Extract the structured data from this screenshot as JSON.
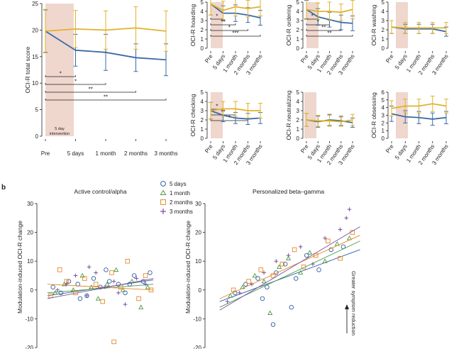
{
  "panel_b_label": "b",
  "annotation": "Greater symptom reduction",
  "intervention_label": [
    "5 day",
    "intervention"
  ],
  "legend": [
    {
      "name": "5 days",
      "symbol": "circle",
      "color": "#2f5fa8"
    },
    {
      "name": "1 month",
      "symbol": "triangle",
      "color": "#4a9a45"
    },
    {
      "name": "2 months",
      "symbol": "square",
      "color": "#e3892a"
    },
    {
      "name": "3 months",
      "symbol": "plus",
      "color": "#7b4fa0"
    }
  ],
  "colors": {
    "active": "#3a6aa8",
    "control": "#e0b22a",
    "shade": "#e9c9bd"
  },
  "chart_data": [
    {
      "id": "total",
      "type": "line",
      "ylabel": "OCI-R total score",
      "x": [
        "Pre",
        "5 days",
        "1 month",
        "2 months",
        "3 months"
      ],
      "ylim": [
        0,
        25
      ],
      "series": [
        {
          "color": "#3a6aa8",
          "values": [
            19.8,
            16.2,
            15.8,
            14.8,
            14.4
          ],
          "err": [
            4,
            3,
            3.4,
            2.6,
            3
          ]
        },
        {
          "color": "#e0b22a",
          "values": [
            19.8,
            20.2,
            20.0,
            20.4,
            19.8
          ],
          "err": [
            4.1,
            3.5,
            3.6,
            4,
            3.8
          ]
        }
      ],
      "significance": [
        "*",
        "*",
        "**",
        "**"
      ]
    },
    {
      "id": "hoarding",
      "type": "line",
      "ylabel": "OCI-R hoarding",
      "x": [
        "Pre",
        "5 days",
        "1 month",
        "2 months",
        "3 months"
      ],
      "ylim": [
        0,
        5
      ],
      "yticks": [
        0,
        1,
        2,
        3,
        4,
        5
      ],
      "series": [
        {
          "color": "#3a6aa8",
          "values": [
            4.8,
            3.8,
            3.8,
            3.6,
            3.3
          ],
          "err": [
            1.2,
            0.8,
            0.9,
            0.8,
            0.8
          ]
        },
        {
          "color": "#e0b22a",
          "values": [
            4.8,
            4.1,
            4.5,
            4.3,
            4.5
          ],
          "err": [
            1.2,
            1,
            1,
            0.9,
            1
          ]
        }
      ],
      "significance": [
        "*",
        "**",
        "*",
        "***"
      ]
    },
    {
      "id": "ordering",
      "type": "line",
      "ylabel": "OCI-R ordering",
      "x": [
        "Pre",
        "5 days",
        "1 month",
        "2 months",
        "3 months"
      ],
      "ylim": [
        0,
        5
      ],
      "yticks": [
        0,
        1,
        2,
        3,
        4,
        5
      ],
      "series": [
        {
          "color": "#3a6aa8",
          "values": [
            4.2,
            3.4,
            3.1,
            2.8,
            2.7
          ],
          "err": [
            1,
            0.9,
            0.8,
            0.8,
            0.8
          ]
        },
        {
          "color": "#e0b22a",
          "values": [
            4.2,
            4.0,
            4.0,
            3.9,
            4.2
          ],
          "err": [
            1.1,
            0.9,
            1,
            0.9,
            1
          ]
        }
      ],
      "significance": [
        "*",
        "*",
        "**",
        "**"
      ]
    },
    {
      "id": "washing",
      "type": "line",
      "ylabel": "OCI-R washing",
      "x": [
        "Pre",
        "5 days",
        "1 month",
        "2 months",
        "3 months"
      ],
      "ylim": [
        0,
        5
      ],
      "yticks": [
        0,
        1,
        2,
        3,
        4,
        5
      ],
      "series": [
        {
          "color": "#3a6aa8",
          "values": [
            2.3,
            2.1,
            2.1,
            2.1,
            1.8
          ],
          "err": [
            0.7,
            0.5,
            0.5,
            0.5,
            0.5
          ]
        },
        {
          "color": "#e0b22a",
          "values": [
            2.3,
            2.2,
            2.2,
            2.2,
            2.2
          ],
          "err": [
            0.7,
            0.6,
            0.6,
            0.6,
            0.6
          ]
        }
      ],
      "significance": []
    },
    {
      "id": "checking",
      "type": "line",
      "ylabel": "OCI-R checking",
      "x": [
        "Pre",
        "5 days",
        "1 month",
        "2 months",
        "3 months"
      ],
      "ylim": [
        0,
        5
      ],
      "yticks": [
        0,
        1,
        2,
        3,
        4,
        5
      ],
      "series": [
        {
          "color": "#3a6aa8",
          "values": [
            3.0,
            2.5,
            2.2,
            2.1,
            2.2
          ],
          "err": [
            0.9,
            0.7,
            0.6,
            0.6,
            0.6
          ]
        },
        {
          "color": "#e0b22a",
          "values": [
            3.0,
            3.2,
            3.2,
            3.0,
            3.0
          ],
          "err": [
            0.9,
            0.8,
            0.8,
            0.8,
            0.8
          ]
        }
      ],
      "significance": [
        "*",
        "**",
        "*"
      ]
    },
    {
      "id": "neutralizing",
      "type": "line",
      "ylabel": "OCI-R neutralizing",
      "x": [
        "Pre",
        "5 days",
        "1 month",
        "2 months",
        "3 months"
      ],
      "ylim": [
        0,
        5
      ],
      "yticks": [
        0,
        1,
        2,
        3,
        4,
        5
      ],
      "series": [
        {
          "color": "#3a6aa8",
          "values": [
            2.0,
            1.8,
            2.0,
            1.9,
            1.7
          ],
          "err": [
            0.7,
            0.6,
            0.6,
            0.5,
            0.5
          ]
        },
        {
          "color": "#e0b22a",
          "values": [
            2.0,
            1.9,
            1.9,
            1.8,
            2.0
          ],
          "err": [
            0.7,
            0.6,
            0.6,
            0.5,
            0.6
          ]
        }
      ],
      "significance": []
    },
    {
      "id": "obsessing",
      "type": "line",
      "ylabel": "OCI-R obsessing",
      "x": [
        "Pre",
        "5 days",
        "1 month",
        "2 months",
        "3 months"
      ],
      "ylim": [
        0,
        6
      ],
      "yticks": [
        0,
        1,
        2,
        3,
        4,
        5,
        6
      ],
      "series": [
        {
          "color": "#3a6aa8",
          "values": [
            3.2,
            2.8,
            2.7,
            2.5,
            2.7
          ],
          "err": [
            1,
            0.8,
            0.8,
            0.8,
            0.8
          ]
        },
        {
          "color": "#e0b22a",
          "values": [
            3.9,
            4.2,
            4.2,
            4.5,
            4.2
          ],
          "err": [
            1,
            0.9,
            0.9,
            1,
            0.9
          ]
        }
      ],
      "significance": []
    },
    {
      "id": "scatter_control",
      "type": "scatter",
      "title": "Active control/alpha",
      "ylabel": "Modulation-induced OCI-R change",
      "xlim": [
        0,
        1
      ],
      "ylim": [
        -20,
        30
      ],
      "yticks": [
        -20,
        -10,
        0,
        10,
        20,
        30
      ],
      "series": [
        {
          "symbol": "circle",
          "color": "#2f5fa8",
          "line": [
            [
              0.03,
              -2
            ],
            [
              0.97,
              3.5
            ]
          ],
          "x": [
            0.08,
            0.15,
            0.22,
            0.3,
            0.38,
            0.44,
            0.5,
            0.58,
            0.66,
            0.72,
            0.8,
            0.88,
            0.94,
            0.32,
            0.55,
            0.76
          ],
          "y": [
            1,
            -1,
            3,
            2,
            -2,
            4,
            1,
            3,
            2,
            -1,
            5,
            3,
            6,
            -3,
            7,
            2
          ]
        },
        {
          "symbol": "triangle",
          "color": "#4a9a45",
          "line": [
            [
              0.03,
              -1
            ],
            [
              0.97,
              2
            ]
          ],
          "x": [
            0.1,
            0.18,
            0.26,
            0.34,
            0.42,
            0.48,
            0.56,
            0.64,
            0.7,
            0.78,
            0.86,
            0.92
          ],
          "y": [
            -1,
            2,
            0,
            5,
            1,
            -3,
            2,
            7,
            0,
            3,
            -6,
            1
          ]
        },
        {
          "symbol": "square",
          "color": "#e3892a",
          "line": [
            [
              0.03,
              2
            ],
            [
              0.97,
              0
            ]
          ],
          "x": [
            0.06,
            0.14,
            0.2,
            0.28,
            0.36,
            0.46,
            0.52,
            0.6,
            0.68,
            0.74,
            0.84,
            0.9,
            0.62,
            0.95
          ],
          "y": [
            -2,
            7,
            3,
            -1,
            4,
            2,
            -4,
            6,
            1,
            10,
            -3,
            5,
            -18,
            0
          ]
        },
        {
          "symbol": "plus",
          "color": "#7b4fa0",
          "line": [
            [
              0.03,
              -3
            ],
            [
              0.97,
              4
            ]
          ],
          "x": [
            0.12,
            0.2,
            0.28,
            0.38,
            0.46,
            0.54,
            0.62,
            0.72,
            0.82,
            0.9,
            0.4,
            0.66
          ],
          "y": [
            0,
            2,
            5,
            -2,
            6,
            1,
            3,
            -5,
            4,
            2,
            8,
            -1
          ]
        }
      ]
    },
    {
      "id": "scatter_personalized",
      "type": "scatter",
      "title": "Personalized beta–gamma",
      "ylabel": "Modulation-induced OCI-R change",
      "xlim": [
        0,
        1
      ],
      "ylim": [
        -20,
        30
      ],
      "yticks": [
        -20,
        -10,
        0,
        10,
        20,
        30
      ],
      "series": [
        {
          "symbol": "circle",
          "color": "#2f5fa8",
          "line": [
            [
              0.05,
              -4
            ],
            [
              0.97,
              14
            ]
          ],
          "x": [
            0.15,
            0.22,
            0.3,
            0.36,
            0.42,
            0.48,
            0.55,
            0.62,
            0.7,
            0.78,
            0.86,
            0.4,
            0.52,
            0.33
          ],
          "y": [
            -1,
            2,
            4,
            1,
            6,
            9,
            4,
            12,
            7,
            14,
            15,
            -12,
            -6,
            -3
          ]
        },
        {
          "symbol": "triangle",
          "color": "#4a9a45",
          "line": [
            [
              0.05,
              -6
            ],
            [
              0.97,
              17
            ]
          ],
          "x": [
            0.12,
            0.2,
            0.28,
            0.34,
            0.44,
            0.5,
            0.58,
            0.64,
            0.74,
            0.82,
            0.9,
            0.38
          ],
          "y": [
            -2,
            1,
            5,
            3,
            8,
            11,
            6,
            13,
            10,
            16,
            18,
            -8
          ]
        },
        {
          "symbol": "square",
          "color": "#e3892a",
          "line": [
            [
              0.05,
              -3
            ],
            [
              0.97,
              19
            ]
          ],
          "x": [
            0.14,
            0.24,
            0.32,
            0.4,
            0.46,
            0.54,
            0.6,
            0.68,
            0.76,
            0.84,
            0.92
          ],
          "y": [
            0,
            3,
            7,
            5,
            9,
            14,
            8,
            12,
            17,
            11,
            20
          ]
        },
        {
          "symbol": "plus",
          "color": "#7b4fa0",
          "line": [
            [
              0.05,
              -7
            ],
            [
              0.97,
              22
            ]
          ],
          "x": [
            0.1,
            0.18,
            0.26,
            0.34,
            0.42,
            0.5,
            0.58,
            0.66,
            0.74,
            0.84,
            0.9,
            0.88
          ],
          "y": [
            -4,
            -1,
            2,
            6,
            10,
            12,
            15,
            9,
            18,
            21,
            28,
            25
          ]
        }
      ]
    }
  ]
}
